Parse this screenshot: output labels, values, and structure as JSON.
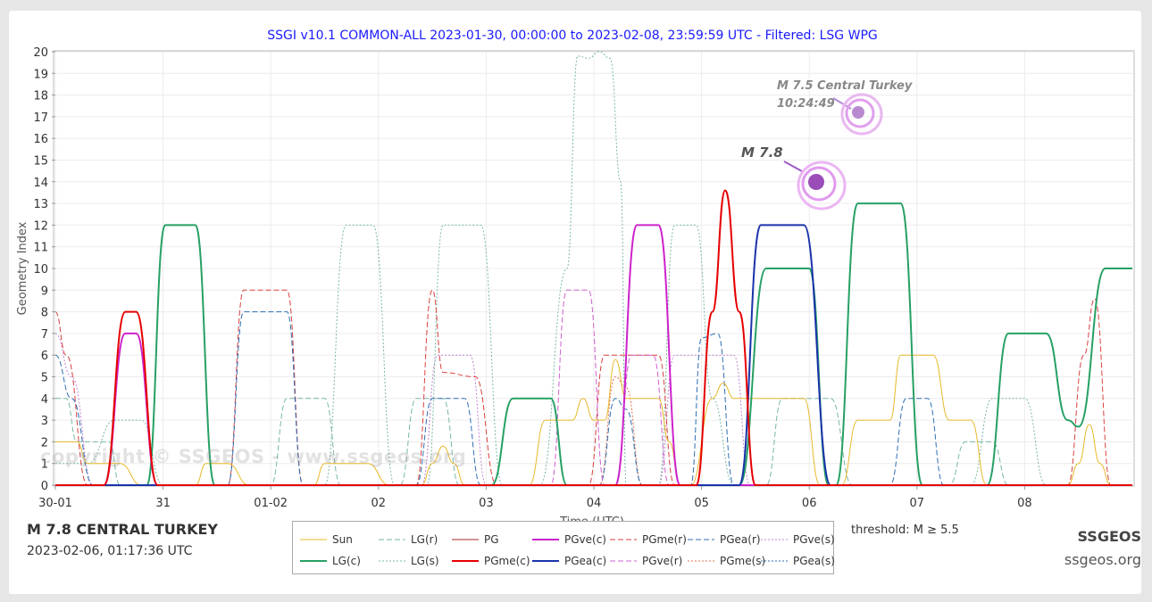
{
  "chart_data": {
    "type": "line",
    "title": "SSGI v10.1 COMMON-ALL 2023-01-30, 00:00:00 to 2023-02-08, 23:59:59 UTC - Filtered: LSG WPG",
    "xlabel": "Time (UTC)",
    "ylabel": "Geometry Index",
    "ylim": [
      0,
      20
    ],
    "xlim": [
      0,
      10
    ],
    "x_ticks": [
      {
        "x": 0,
        "label": "30-01"
      },
      {
        "x": 1,
        "label": "31"
      },
      {
        "x": 2,
        "label": "01-02"
      },
      {
        "x": 3,
        "label": "02"
      },
      {
        "x": 4,
        "label": "03"
      },
      {
        "x": 5,
        "label": "04"
      },
      {
        "x": 6,
        "label": "05"
      },
      {
        "x": 7,
        "label": "06"
      },
      {
        "x": 8,
        "label": "07"
      },
      {
        "x": 9,
        "label": "08"
      }
    ],
    "y_ticks": [
      0,
      1,
      2,
      3,
      4,
      5,
      6,
      7,
      8,
      9,
      10,
      11,
      12,
      13,
      14,
      15,
      16,
      17,
      18,
      19,
      20
    ],
    "grid": true,
    "legend_position": "bottom-center",
    "series": [
      {
        "name": "Sun",
        "color": "#e8b829",
        "dash": "solid",
        "width": 1,
        "points": [
          [
            0,
            2
          ],
          [
            0.2,
            2
          ],
          [
            0.3,
            1
          ],
          [
            0.6,
            1
          ],
          [
            0.8,
            0
          ],
          [
            1.3,
            0
          ],
          [
            1.4,
            1
          ],
          [
            1.6,
            1
          ],
          [
            1.8,
            0
          ],
          [
            2.4,
            0
          ],
          [
            2.5,
            1
          ],
          [
            2.9,
            1
          ],
          [
            3.1,
            0
          ],
          [
            3.4,
            0
          ],
          [
            3.5,
            1
          ],
          [
            3.6,
            1.8
          ],
          [
            3.7,
            1
          ],
          [
            3.8,
            0
          ],
          [
            4.4,
            0
          ],
          [
            4.55,
            3
          ],
          [
            4.8,
            3
          ],
          [
            4.9,
            4
          ],
          [
            5.0,
            3
          ],
          [
            5.1,
            3
          ],
          [
            5.2,
            5.8
          ],
          [
            5.3,
            4
          ],
          [
            5.6,
            4
          ],
          [
            5.7,
            2
          ],
          [
            5.8,
            0
          ],
          [
            5.9,
            0
          ],
          [
            6.1,
            4
          ],
          [
            6.2,
            4.7
          ],
          [
            6.3,
            4
          ],
          [
            6.95,
            4
          ],
          [
            7.1,
            0
          ],
          [
            7.3,
            0
          ],
          [
            7.45,
            3
          ],
          [
            7.75,
            3
          ],
          [
            7.85,
            6
          ],
          [
            8.15,
            6
          ],
          [
            8.3,
            3
          ],
          [
            8.5,
            3
          ],
          [
            8.65,
            0
          ],
          [
            9.4,
            0
          ],
          [
            9.5,
            1
          ],
          [
            9.6,
            2.8
          ],
          [
            9.7,
            1
          ],
          [
            9.8,
            0
          ],
          [
            10,
            0
          ]
        ]
      },
      {
        "name": "LG(c)",
        "color": "#26a065",
        "dash": "solid",
        "width": 2,
        "points": [
          [
            0,
            0
          ],
          [
            0.85,
            0
          ],
          [
            1.02,
            12
          ],
          [
            1.3,
            12
          ],
          [
            1.48,
            0
          ],
          [
            4.05,
            0
          ],
          [
            4.25,
            4
          ],
          [
            4.6,
            4
          ],
          [
            4.75,
            0
          ],
          [
            6.35,
            0
          ],
          [
            6.6,
            10
          ],
          [
            7.0,
            10
          ],
          [
            7.18,
            0
          ],
          [
            7.25,
            0
          ],
          [
            7.45,
            13
          ],
          [
            7.85,
            13
          ],
          [
            8.05,
            0
          ],
          [
            8.65,
            0
          ],
          [
            8.85,
            7
          ],
          [
            9.2,
            7
          ],
          [
            9.4,
            3
          ],
          [
            9.5,
            2.7
          ],
          [
            9.75,
            10
          ],
          [
            10,
            10
          ]
        ]
      },
      {
        "name": "LG(r)",
        "color": "#7ab8a2",
        "dash": "dashed",
        "width": 1,
        "points": [
          [
            0,
            4
          ],
          [
            0.1,
            4
          ],
          [
            0.2,
            2
          ],
          [
            0.5,
            2
          ],
          [
            0.6,
            0
          ],
          [
            2.0,
            0
          ],
          [
            2.15,
            4
          ],
          [
            2.5,
            4
          ],
          [
            2.65,
            0
          ],
          [
            3.2,
            0
          ],
          [
            3.35,
            4
          ],
          [
            3.6,
            4
          ],
          [
            3.75,
            0
          ],
          [
            6.6,
            0
          ],
          [
            6.75,
            4
          ],
          [
            7.2,
            4
          ],
          [
            7.4,
            0
          ],
          [
            8.3,
            0
          ],
          [
            8.45,
            2
          ],
          [
            8.7,
            2
          ],
          [
            8.85,
            0
          ],
          [
            10,
            0
          ]
        ]
      },
      {
        "name": "LG(s)",
        "color": "#7ab8a2",
        "dash": "dotted",
        "width": 1,
        "points": [
          [
            0,
            1
          ],
          [
            0.3,
            1
          ],
          [
            0.55,
            3
          ],
          [
            0.8,
            3
          ],
          [
            1.0,
            0
          ],
          [
            2.5,
            0
          ],
          [
            2.7,
            12
          ],
          [
            2.95,
            12
          ],
          [
            3.15,
            0
          ],
          [
            3.45,
            0
          ],
          [
            3.6,
            12
          ],
          [
            3.95,
            12
          ],
          [
            4.15,
            0
          ],
          [
            4.5,
            0
          ],
          [
            4.75,
            10
          ],
          [
            4.85,
            19.8
          ],
          [
            4.95,
            19.7
          ],
          [
            5.05,
            20
          ],
          [
            5.15,
            19.7
          ],
          [
            5.25,
            14
          ],
          [
            5.3,
            0
          ],
          [
            5.6,
            0
          ],
          [
            5.75,
            12
          ],
          [
            5.95,
            12
          ],
          [
            6.1,
            4
          ],
          [
            6.3,
            0
          ],
          [
            8.5,
            0
          ],
          [
            8.7,
            4
          ],
          [
            9.0,
            4
          ],
          [
            9.2,
            0
          ],
          [
            10,
            0
          ]
        ]
      },
      {
        "name": "PG",
        "color": "#a52a2a",
        "dash": "solid",
        "width": 1,
        "points": [
          [
            0,
            0
          ],
          [
            10,
            0
          ]
        ]
      },
      {
        "name": "PGme(c)",
        "color": "#e60000",
        "dash": "solid",
        "width": 2,
        "points": [
          [
            0,
            0
          ],
          [
            0.45,
            0
          ],
          [
            0.65,
            8
          ],
          [
            0.75,
            8
          ],
          [
            0.95,
            0
          ],
          [
            5.95,
            0
          ],
          [
            6.1,
            8
          ],
          [
            6.22,
            13.6
          ],
          [
            6.35,
            8
          ],
          [
            6.5,
            0
          ],
          [
            10,
            0
          ]
        ]
      },
      {
        "name": "PGve(c)",
        "color": "#cc22cc",
        "dash": "solid",
        "width": 2,
        "points": [
          [
            0,
            0
          ],
          [
            0.45,
            0
          ],
          [
            0.65,
            7
          ],
          [
            0.75,
            7
          ],
          [
            0.95,
            0
          ],
          [
            5.2,
            0
          ],
          [
            5.4,
            12
          ],
          [
            5.6,
            12
          ],
          [
            5.8,
            0
          ],
          [
            10,
            0
          ]
        ]
      },
      {
        "name": "PGea(c)",
        "color": "#1a33aa",
        "dash": "solid",
        "width": 2,
        "points": [
          [
            0,
            0
          ],
          [
            6.35,
            0
          ],
          [
            6.55,
            12
          ],
          [
            6.95,
            12
          ],
          [
            7.2,
            0
          ],
          [
            10,
            0
          ]
        ]
      },
      {
        "name": "PGve(r)",
        "color": "#d060d0",
        "dash": "dashed",
        "width": 1,
        "points": [
          [
            0,
            0
          ],
          [
            4.6,
            0
          ],
          [
            4.75,
            9
          ],
          [
            4.95,
            9
          ],
          [
            5.1,
            0
          ],
          [
            5.2,
            0
          ],
          [
            5.35,
            6
          ],
          [
            5.55,
            6
          ],
          [
            5.7,
            0
          ],
          [
            10,
            0
          ]
        ]
      },
      {
        "name": "PGme(r)",
        "color": "#d94040",
        "dash": "dashed",
        "width": 1,
        "points": [
          [
            0,
            8
          ],
          [
            0.1,
            6
          ],
          [
            0.3,
            0
          ],
          [
            1.6,
            0
          ],
          [
            1.75,
            9
          ],
          [
            2.15,
            9
          ],
          [
            2.3,
            0
          ],
          [
            3.35,
            0
          ],
          [
            3.5,
            9
          ],
          [
            3.6,
            5.2
          ],
          [
            3.9,
            5
          ],
          [
            4.1,
            0
          ],
          [
            4.95,
            0
          ],
          [
            5.1,
            6
          ],
          [
            5.6,
            6
          ],
          [
            5.75,
            0
          ],
          [
            9.4,
            0
          ],
          [
            9.55,
            6
          ],
          [
            9.65,
            8.6
          ],
          [
            9.8,
            0
          ],
          [
            10,
            0
          ]
        ]
      },
      {
        "name": "PGme(s)",
        "color": "#e07050",
        "dash": "dotted",
        "width": 1,
        "points": [
          [
            0,
            0
          ],
          [
            5.05,
            0
          ],
          [
            5.2,
            5
          ],
          [
            5.3,
            4.5
          ],
          [
            5.45,
            0
          ],
          [
            10,
            0
          ]
        ]
      },
      {
        "name": "PGea(r)",
        "color": "#2e6fb5",
        "dash": "dashed",
        "width": 1,
        "points": [
          [
            0,
            6
          ],
          [
            0.15,
            4
          ],
          [
            0.35,
            0
          ],
          [
            1.6,
            0
          ],
          [
            1.75,
            8
          ],
          [
            2.15,
            8
          ],
          [
            2.3,
            0
          ],
          [
            3.35,
            0
          ],
          [
            3.5,
            4
          ],
          [
            3.8,
            4
          ],
          [
            3.95,
            0
          ],
          [
            5.05,
            0
          ],
          [
            5.2,
            4
          ],
          [
            5.3,
            3.5
          ],
          [
            5.45,
            0
          ],
          [
            5.9,
            0
          ],
          [
            6.0,
            6.8
          ],
          [
            6.15,
            7
          ],
          [
            6.3,
            0
          ],
          [
            7.75,
            0
          ],
          [
            7.9,
            4
          ],
          [
            8.1,
            4
          ],
          [
            8.25,
            0
          ],
          [
            10,
            0
          ]
        ]
      },
      {
        "name": "PGve(s)",
        "color": "#c080d0",
        "dash": "dotted",
        "width": 1,
        "points": [
          [
            0,
            7
          ],
          [
            0.15,
            5
          ],
          [
            0.35,
            0
          ],
          [
            3.4,
            0
          ],
          [
            3.55,
            6
          ],
          [
            3.85,
            6
          ],
          [
            4.0,
            0
          ],
          [
            5.6,
            0
          ],
          [
            5.75,
            6
          ],
          [
            6.3,
            6
          ],
          [
            6.45,
            0
          ],
          [
            10,
            0
          ]
        ]
      },
      {
        "name": "PGea(s)",
        "color": "#2e6fb5",
        "dash": "dotted",
        "width": 1,
        "points": [
          [
            0,
            0
          ],
          [
            10,
            0
          ]
        ]
      }
    ],
    "annotations": [
      {
        "label": "M 7.5 Central Turkey",
        "time": "10:24:49"
      },
      {
        "label": "M 7.8"
      }
    ]
  },
  "info": {
    "event_name": "M 7.8 CENTRAL TURKEY",
    "event_time": "2023-02-06, 01:17:36 UTC",
    "threshold": "threshold: M ≥ 5.5",
    "brand": "SSGEOS",
    "site": "ssgeos.org",
    "watermark": "copyright © SSGEOS - www.ssgeos.org"
  }
}
